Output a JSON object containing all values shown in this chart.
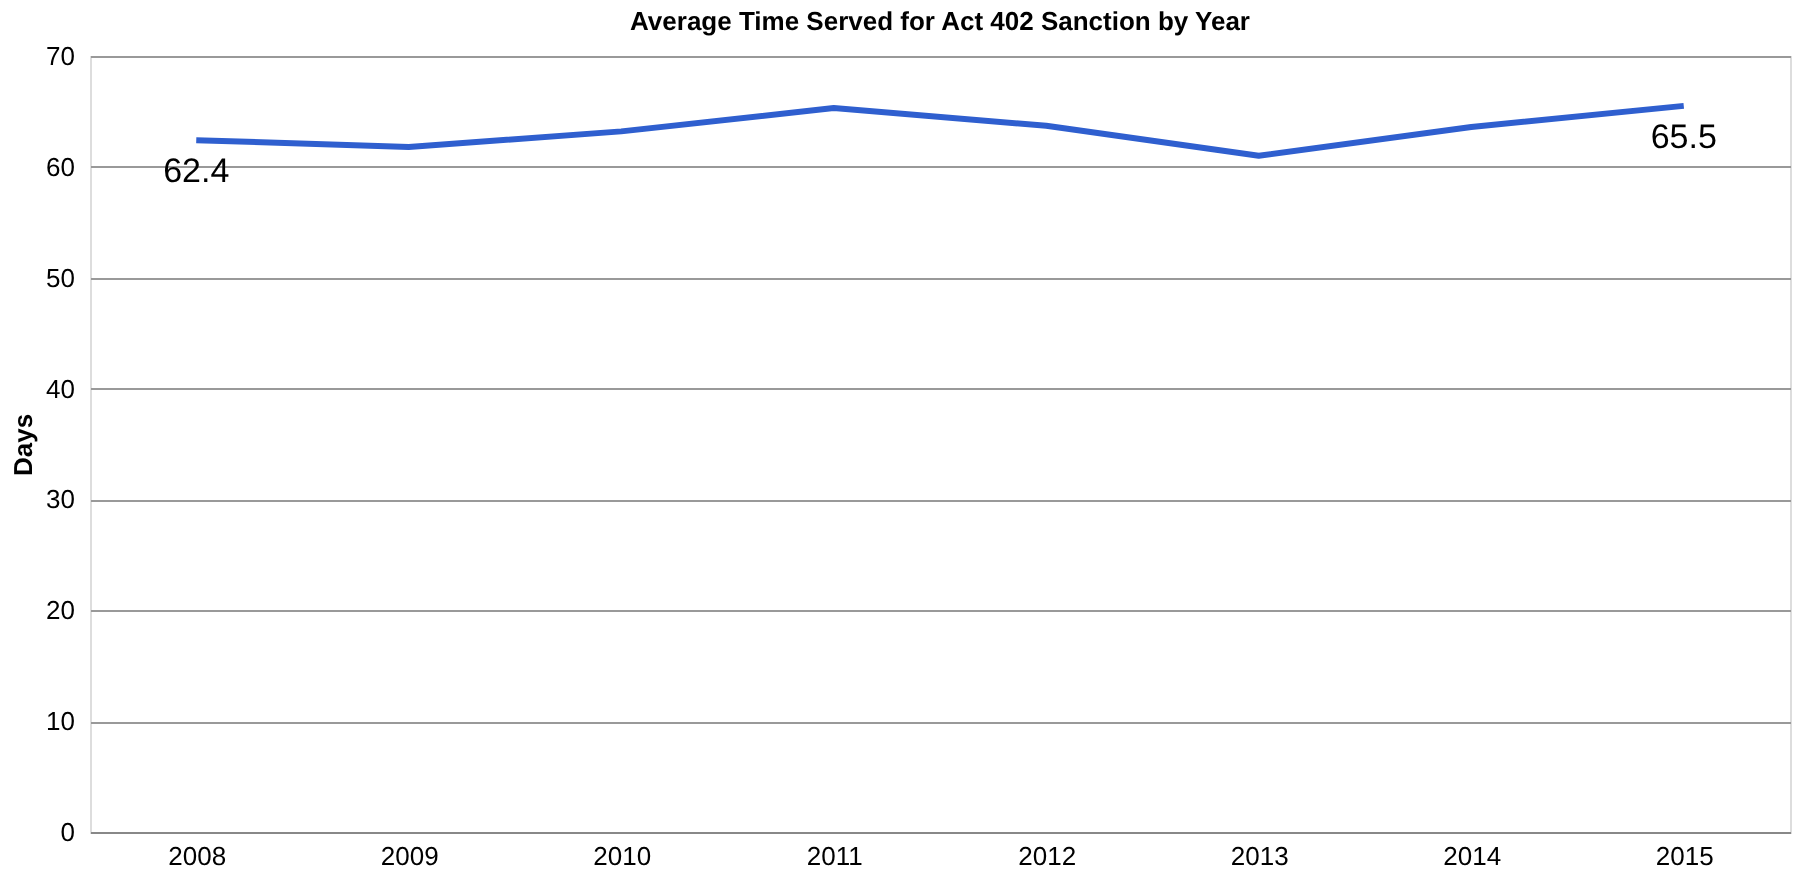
{
  "chart_data": {
    "type": "line",
    "title": "Average Time Served for Act 402 Sanction by Year",
    "ylabel": "Days",
    "categories": [
      "2008",
      "2009",
      "2010",
      "2011",
      "2012",
      "2013",
      "2014",
      "2015"
    ],
    "series": [
      {
        "color": "#2f5fcf",
        "values": [
          62.4,
          61.8,
          63.2,
          65.3,
          63.7,
          61.0,
          63.6,
          65.5
        ],
        "value_labels": [
          "62.4",
          null,
          null,
          null,
          null,
          null,
          null,
          "65.5"
        ]
      }
    ],
    "ylim": [
      0,
      70
    ],
    "yticks": [
      0,
      10,
      20,
      30,
      40,
      50,
      60,
      70
    ],
    "grid": "y",
    "marker": "none",
    "line_style": "solid"
  }
}
